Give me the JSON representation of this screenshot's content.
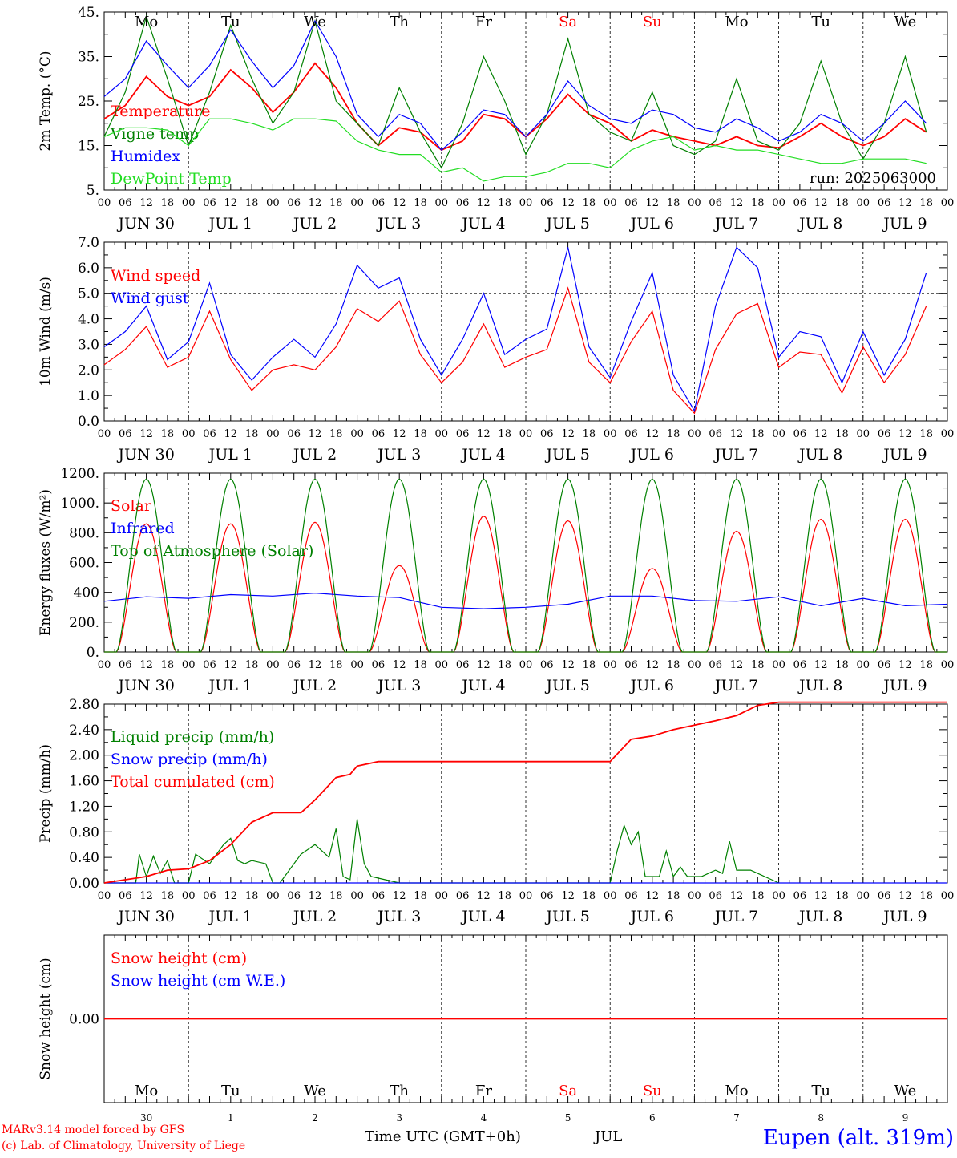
{
  "days": [
    "Mo",
    "Tu",
    "We",
    "Th",
    "Fr",
    "Sa",
    "Su",
    "Mo",
    "Tu",
    "We"
  ],
  "weekend_days": [
    "Sa",
    "Su"
  ],
  "dates": [
    "JUN  30",
    "JUL  1",
    "JUL  2",
    "JUL  3",
    "JUL  4",
    "JUL  5",
    "JUL  6",
    "JUL  7",
    "JUL  8",
    "JUL  9"
  ],
  "hour_ticks": [
    "00",
    "06",
    "12",
    "18"
  ],
  "hour_end": "00",
  "bottom_day_numbers": [
    "30",
    "1",
    "2",
    "3",
    "4",
    "5",
    "6",
    "7",
    "8",
    "9"
  ],
  "footer": {
    "model": "MARv3.14 model forced by GFS",
    "credit": "(c) Lab. of Climatology, University of Liege",
    "xaxis": "Time UTC (GMT+0h)",
    "month": "JUL",
    "station": "Eupen (alt. 319m)"
  },
  "colors": {
    "red": "#ff0000",
    "green": "#008000",
    "blue": "#0000ff",
    "lightgreen": "#22dd22",
    "weekend": "#ff0000",
    "text": "#000000"
  },
  "chart_data": [
    {
      "type": "line",
      "ylabel": "2m Temp. (°C)",
      "ylim": [
        5,
        45
      ],
      "yticks": [
        5,
        15,
        25,
        35,
        45
      ],
      "ytick_labels": [
        "5.",
        "15.",
        "25.",
        "35.",
        "45."
      ],
      "x_unit": "hours since Jun 30 00 UTC",
      "annotation": "run: 2025063000",
      "series": [
        {
          "name": "Temperature",
          "color": "#ff0000",
          "x": [
            0,
            6,
            12,
            18,
            24,
            30,
            36,
            42,
            48,
            54,
            60,
            66,
            72,
            78,
            84,
            90,
            96,
            102,
            108,
            114,
            120,
            126,
            132,
            138,
            144,
            150,
            156,
            162,
            168,
            174,
            180,
            186,
            192,
            198,
            204,
            210,
            216,
            222,
            228,
            234
          ],
          "y": [
            21,
            24,
            30.5,
            26,
            24,
            26,
            32,
            28,
            22.5,
            27,
            33.5,
            28,
            20,
            15,
            19,
            18,
            14,
            16,
            22,
            21,
            17,
            21,
            26.5,
            22,
            20,
            16,
            18.5,
            17,
            16,
            15,
            17,
            15,
            14.5,
            17,
            20,
            17,
            15,
            17,
            21,
            18
          ]
        },
        {
          "name": "Vigne temp",
          "color": "#008000",
          "x": [
            0,
            6,
            12,
            18,
            24,
            30,
            36,
            42,
            48,
            54,
            60,
            66,
            72,
            78,
            84,
            90,
            96,
            102,
            108,
            114,
            120,
            126,
            132,
            138,
            144,
            150,
            156,
            162,
            168,
            174,
            180,
            186,
            192,
            198,
            204,
            210,
            216,
            222,
            228,
            234
          ],
          "y": [
            17,
            27,
            44,
            30,
            15,
            27,
            42,
            30,
            20,
            27,
            43,
            25,
            20,
            15,
            28,
            18,
            10,
            20,
            35,
            25,
            13,
            22,
            39,
            22,
            18,
            16,
            27,
            15,
            13,
            16,
            30,
            16,
            14,
            20,
            34,
            20,
            12,
            20,
            35,
            18
          ]
        },
        {
          "name": "Humidex",
          "color": "#0000ff",
          "x": [
            0,
            6,
            12,
            18,
            24,
            30,
            36,
            42,
            48,
            54,
            60,
            66,
            72,
            78,
            84,
            90,
            96,
            102,
            108,
            114,
            120,
            126,
            132,
            138,
            144,
            150,
            156,
            162,
            168,
            174,
            180,
            186,
            192,
            198,
            204,
            210,
            216,
            222,
            228,
            234
          ],
          "y": [
            26,
            30,
            38.5,
            33,
            28,
            33,
            41,
            34,
            28,
            33,
            43,
            35,
            22,
            17,
            22,
            20,
            14,
            18,
            23,
            22,
            17,
            22,
            29.5,
            24,
            21,
            20,
            23,
            22,
            19,
            18,
            21,
            19,
            16,
            18,
            22,
            20,
            16,
            20,
            25,
            20
          ]
        },
        {
          "name": "DewPoint Temp",
          "color": "#22dd22",
          "x": [
            0,
            6,
            12,
            18,
            24,
            30,
            36,
            42,
            48,
            54,
            60,
            66,
            72,
            78,
            84,
            90,
            96,
            102,
            108,
            114,
            120,
            126,
            132,
            138,
            144,
            150,
            156,
            162,
            168,
            174,
            180,
            186,
            192,
            198,
            204,
            210,
            216,
            222,
            228,
            234
          ],
          "y": [
            17,
            19,
            19,
            18.5,
            15,
            21,
            21,
            20,
            18.5,
            21,
            21,
            20.5,
            16,
            14,
            13,
            13,
            9,
            10,
            7,
            8,
            8,
            9,
            11,
            11,
            10,
            14,
            16,
            17,
            14,
            15,
            14,
            14,
            13,
            12,
            11,
            11,
            12,
            12,
            12,
            11
          ]
        }
      ]
    },
    {
      "type": "line",
      "ylabel": "10m Wind (m/s)",
      "ylim": [
        0,
        7
      ],
      "yticks": [
        0,
        1,
        2,
        3,
        4,
        5,
        6,
        7
      ],
      "ytick_labels": [
        "0.0",
        "1.0",
        "2.0",
        "3.0",
        "4.0",
        "5.0",
        "6.0",
        "7.0"
      ],
      "reference_line": 5,
      "x_unit": "hours since Jun 30 00 UTC",
      "series": [
        {
          "name": "Wind speed",
          "color": "#ff0000",
          "x": [
            0,
            6,
            12,
            18,
            24,
            30,
            36,
            42,
            48,
            54,
            60,
            66,
            72,
            78,
            84,
            90,
            96,
            102,
            108,
            114,
            120,
            126,
            132,
            138,
            144,
            150,
            156,
            162,
            168,
            174,
            180,
            186,
            192,
            198,
            204,
            210,
            216,
            222,
            228,
            234
          ],
          "y": [
            2.2,
            2.8,
            3.7,
            2.1,
            2.5,
            4.3,
            2.4,
            1.2,
            2.0,
            2.2,
            2.0,
            2.9,
            4.4,
            3.9,
            4.7,
            2.6,
            1.5,
            2.3,
            3.8,
            2.1,
            2.5,
            2.8,
            5.2,
            2.3,
            1.5,
            3.1,
            4.3,
            1.2,
            0.3,
            2.8,
            4.2,
            4.6,
            2.1,
            2.7,
            2.6,
            1.1,
            2.9,
            1.5,
            2.6,
            4.5
          ]
        },
        {
          "name": "Wind gust",
          "color": "#0000ff",
          "x": [
            0,
            6,
            12,
            18,
            24,
            30,
            36,
            42,
            48,
            54,
            60,
            66,
            72,
            78,
            84,
            90,
            96,
            102,
            108,
            114,
            120,
            126,
            132,
            138,
            144,
            150,
            156,
            162,
            168,
            174,
            180,
            186,
            192,
            198,
            204,
            210,
            216,
            222,
            228,
            234
          ],
          "y": [
            2.9,
            3.5,
            4.5,
            2.4,
            3.1,
            5.4,
            2.6,
            1.6,
            2.5,
            3.2,
            2.5,
            3.8,
            6.1,
            5.2,
            5.6,
            3.2,
            1.8,
            3.2,
            5.0,
            2.6,
            3.2,
            3.6,
            6.8,
            2.9,
            1.7,
            3.9,
            5.8,
            1.8,
            0.4,
            4.5,
            6.8,
            6.0,
            2.5,
            3.5,
            3.3,
            1.5,
            3.5,
            1.8,
            3.2,
            5.8
          ]
        }
      ]
    },
    {
      "type": "line",
      "ylabel": "Energy fluxes (W/m²)",
      "ylim": [
        0,
        1200
      ],
      "yticks": [
        0,
        200,
        400,
        600,
        800,
        1000,
        1200
      ],
      "ytick_labels": [
        "0.",
        "200.",
        "400",
        "600.",
        "800.",
        "1000.",
        "1200."
      ],
      "x_unit": "hours since Jun 30 00 UTC",
      "series": [
        {
          "name": "Solar",
          "color": "#ff0000",
          "day_peaks": [
            860,
            860,
            870,
            580,
            910,
            880,
            560,
            810,
            890,
            890
          ]
        },
        {
          "name": "Infrared",
          "color": "#0000ff",
          "x": [
            0,
            12,
            24,
            36,
            48,
            60,
            72,
            84,
            96,
            108,
            120,
            132,
            144,
            156,
            168,
            180,
            192,
            204,
            216,
            228,
            240
          ],
          "y": [
            340,
            370,
            360,
            385,
            375,
            395,
            375,
            365,
            300,
            290,
            300,
            320,
            375,
            375,
            345,
            340,
            370,
            310,
            360,
            310,
            320
          ]
        },
        {
          "name": "Top of Atmosphere (Solar)",
          "color": "#008000",
          "day_peak": 1160
        }
      ]
    },
    {
      "type": "line",
      "ylabel": "Precip (mm/h)",
      "ylim": [
        0,
        2.8
      ],
      "yticks": [
        0,
        0.4,
        0.8,
        1.2,
        1.6,
        2.0,
        2.4,
        2.8
      ],
      "ytick_labels": [
        "0.00",
        "0.40",
        "0.80",
        "1.20",
        "1.60",
        "2.00",
        "2.40",
        "2.80"
      ],
      "x_unit": "hours since Jun 30 00 UTC",
      "series": [
        {
          "name": "Liquid precip (mm/h)",
          "color": "#008000",
          "x": [
            0,
            9,
            10,
            12,
            14,
            16,
            18,
            20,
            24,
            26,
            30,
            34,
            36,
            38,
            40,
            42,
            46,
            48,
            50,
            56,
            60,
            64,
            66,
            68,
            70,
            72,
            74,
            76,
            80,
            84,
            144,
            146,
            148,
            150,
            152,
            154,
            158,
            160,
            162,
            164,
            166,
            170,
            174,
            176,
            178,
            180,
            184,
            186,
            190,
            192
          ],
          "y": [
            0,
            0,
            0.45,
            0.1,
            0.42,
            0.15,
            0.35,
            0,
            0,
            0.45,
            0.3,
            0.6,
            0.7,
            0.35,
            0.3,
            0.35,
            0.3,
            0,
            0,
            0.45,
            0.6,
            0.4,
            0.85,
            0.1,
            0.05,
            1.0,
            0.3,
            0.1,
            0.05,
            0,
            0,
            0.5,
            0.9,
            0.6,
            0.8,
            0.1,
            0.1,
            0.5,
            0.1,
            0.25,
            0.1,
            0.1,
            0.2,
            0.15,
            0.65,
            0.2,
            0.2,
            0.15,
            0.05,
            0
          ]
        },
        {
          "name": "Snow precip (mm/h)",
          "color": "#0000ff",
          "x": [
            0,
            240
          ],
          "y": [
            0,
            0
          ]
        },
        {
          "name": "Total cumulated (cm)",
          "color": "#ff0000",
          "x": [
            0,
            12,
            18,
            24,
            30,
            36,
            42,
            48,
            56,
            60,
            66,
            70,
            72,
            78,
            84,
            120,
            144,
            150,
            156,
            162,
            168,
            174,
            180,
            186,
            192,
            240
          ],
          "y": [
            0,
            0.1,
            0.2,
            0.22,
            0.35,
            0.6,
            0.95,
            1.1,
            1.1,
            1.3,
            1.65,
            1.7,
            1.83,
            1.9,
            1.9,
            1.9,
            1.9,
            2.25,
            2.3,
            2.4,
            2.47,
            2.54,
            2.62,
            2.78,
            2.83,
            2.83
          ]
        }
      ]
    },
    {
      "type": "line",
      "ylabel": "Snow height (cm)",
      "ylim": [
        -1,
        1
      ],
      "yticks": [
        0
      ],
      "ytick_labels": [
        "0.00"
      ],
      "x_unit": "hours since Jun 30 00 UTC",
      "series": [
        {
          "name": "Snow height (cm)",
          "color": "#ff0000",
          "x": [
            0,
            240
          ],
          "y": [
            0,
            0
          ]
        },
        {
          "name": "Snow height (cm W.E.)",
          "color": "#0000ff",
          "x": [],
          "y": []
        }
      ]
    }
  ]
}
